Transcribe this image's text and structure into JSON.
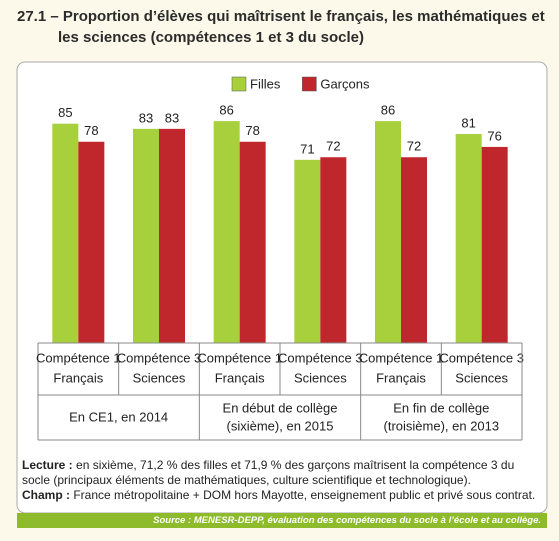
{
  "chart_data": {
    "type": "bar",
    "title": "27.1 – Proportion d’élèves qui maîtrisent le français, les mathématiques et les sciences (compétences 1 et 3 du socle)",
    "categories": [
      [
        "Compétence 1",
        "Français"
      ],
      [
        "Compétence 3",
        "Sciences"
      ],
      [
        "Compétence 1",
        "Français"
      ],
      [
        "Compétence 3",
        "Sciences"
      ],
      [
        "Compétence 1",
        "Français"
      ],
      [
        "Compétence 3",
        "Sciences"
      ]
    ],
    "groups": [
      [
        "En CE1, en 2014"
      ],
      [
        "En début de collège",
        "(sixième), en 2015"
      ],
      [
        "En fin de collège",
        "(troisième), en 2013"
      ]
    ],
    "series": [
      {
        "name": "Filles",
        "color": "#a8cf3c",
        "values": [
          85,
          83,
          86,
          71,
          86,
          81
        ]
      },
      {
        "name": "Garçons",
        "color": "#c0272d",
        "values": [
          78,
          83,
          78,
          72,
          72,
          76
        ]
      }
    ],
    "notes": {
      "lecture_label": "Lecture :",
      "lecture": "en sixième, 71,2 % des filles et 71,9 % des garçons maîtrisent la compétence 3 du socle (principaux éléments de mathématiques, culture scientifique et technologique).",
      "champ_label": "Champ :",
      "champ": "France métropolitaine + DOM hors Mayotte, enseignement public et privé sous contrat."
    },
    "source": "Source : MENESR-DEPP, évaluation des compétences du socle à l’école et au collège."
  }
}
